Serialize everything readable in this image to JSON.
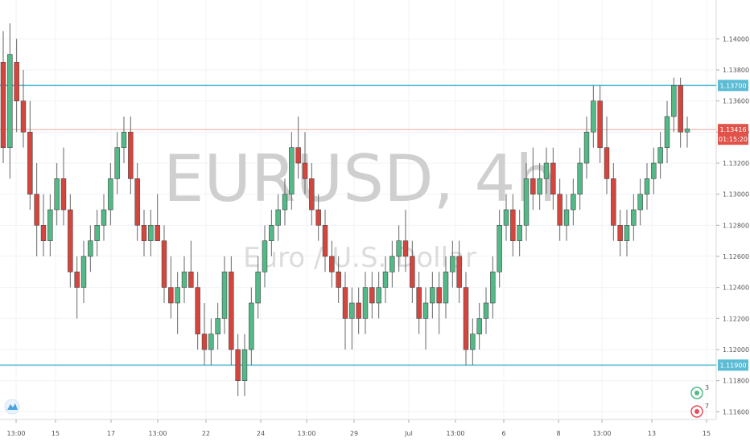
{
  "chart_data": {
    "type": "candlestick",
    "symbol": "EURUSD",
    "interval": "4h",
    "description": "Euro / U.S. Dollar",
    "ylim": [
      1.1155,
      1.1425
    ],
    "y_ticks": [
      "1.11600",
      "1.11800",
      "1.12000",
      "1.12200",
      "1.12400",
      "1.12600",
      "1.12800",
      "1.13000",
      "1.13200",
      "1.13400",
      "1.13600",
      "1.13800",
      "1.14000"
    ],
    "x_ticks": [
      "13:00",
      "15",
      "17",
      "13:00",
      "22",
      "24",
      "13:00",
      "29",
      "Jul",
      "13:00",
      "6",
      "8",
      "13:00",
      "13",
      "15"
    ],
    "horizontal_lines": [
      {
        "label": "1.13700",
        "value": 1.137,
        "color": "#5bbcd4"
      },
      {
        "label": "1.11900",
        "value": 1.119,
        "color": "#5bbcd4"
      }
    ],
    "last_price": {
      "label": "1.13416",
      "value": 1.13416,
      "countdown": "01:15:20",
      "color": "#e0524a"
    },
    "indicators": [
      "3",
      "7"
    ],
    "candles": [
      [
        1.1385,
        1.1405,
        1.132,
        1.133
      ],
      [
        1.133,
        1.141,
        1.131,
        1.139
      ],
      [
        1.1385,
        1.14,
        1.134,
        1.136
      ],
      [
        1.136,
        1.138,
        1.133,
        1.134
      ],
      [
        1.134,
        1.136,
        1.129,
        1.13
      ],
      [
        1.13,
        1.132,
        1.126,
        1.128
      ],
      [
        1.128,
        1.13,
        1.126,
        1.127
      ],
      [
        1.127,
        1.13,
        1.126,
        1.129
      ],
      [
        1.129,
        1.132,
        1.128,
        1.131
      ],
      [
        1.131,
        1.133,
        1.128,
        1.129
      ],
      [
        1.129,
        1.13,
        1.124,
        1.125
      ],
      [
        1.125,
        1.126,
        1.122,
        1.124
      ],
      [
        1.124,
        1.127,
        1.123,
        1.126
      ],
      [
        1.126,
        1.128,
        1.125,
        1.127
      ],
      [
        1.127,
        1.129,
        1.126,
        1.128
      ],
      [
        1.128,
        1.13,
        1.127,
        1.129
      ],
      [
        1.129,
        1.132,
        1.128,
        1.131
      ],
      [
        1.131,
        1.134,
        1.13,
        1.133
      ],
      [
        1.133,
        1.135,
        1.132,
        1.134
      ],
      [
        1.134,
        1.135,
        1.13,
        1.131
      ],
      [
        1.131,
        1.132,
        1.127,
        1.128
      ],
      [
        1.128,
        1.129,
        1.126,
        1.127
      ],
      [
        1.127,
        1.129,
        1.126,
        1.128
      ],
      [
        1.128,
        1.13,
        1.127,
        1.127
      ],
      [
        1.127,
        1.128,
        1.123,
        1.124
      ],
      [
        1.124,
        1.126,
        1.122,
        1.123
      ],
      [
        1.123,
        1.125,
        1.121,
        1.124
      ],
      [
        1.124,
        1.126,
        1.123,
        1.125
      ],
      [
        1.125,
        1.127,
        1.124,
        1.124
      ],
      [
        1.124,
        1.125,
        1.12,
        1.121
      ],
      [
        1.121,
        1.123,
        1.119,
        1.12
      ],
      [
        1.12,
        1.122,
        1.119,
        1.121
      ],
      [
        1.121,
        1.123,
        1.12,
        1.122
      ],
      [
        1.122,
        1.126,
        1.121,
        1.125
      ],
      [
        1.125,
        1.126,
        1.119,
        1.12
      ],
      [
        1.12,
        1.121,
        1.117,
        1.118
      ],
      [
        1.118,
        1.121,
        1.117,
        1.12
      ],
      [
        1.12,
        1.124,
        1.119,
        1.123
      ],
      [
        1.123,
        1.126,
        1.122,
        1.125
      ],
      [
        1.125,
        1.128,
        1.124,
        1.127
      ],
      [
        1.127,
        1.129,
        1.126,
        1.128
      ],
      [
        1.128,
        1.13,
        1.127,
        1.129
      ],
      [
        1.129,
        1.131,
        1.128,
        1.13
      ],
      [
        1.13,
        1.134,
        1.129,
        1.133
      ],
      [
        1.133,
        1.135,
        1.131,
        1.132
      ],
      [
        1.132,
        1.134,
        1.13,
        1.131
      ],
      [
        1.131,
        1.132,
        1.128,
        1.129
      ],
      [
        1.129,
        1.13,
        1.127,
        1.128
      ],
      [
        1.128,
        1.129,
        1.125,
        1.126
      ],
      [
        1.126,
        1.127,
        1.124,
        1.125
      ],
      [
        1.125,
        1.126,
        1.123,
        1.124
      ],
      [
        1.124,
        1.125,
        1.12,
        1.122
      ],
      [
        1.122,
        1.124,
        1.12,
        1.123
      ],
      [
        1.123,
        1.124,
        1.121,
        1.122
      ],
      [
        1.122,
        1.125,
        1.121,
        1.124
      ],
      [
        1.124,
        1.125,
        1.122,
        1.123
      ],
      [
        1.123,
        1.125,
        1.122,
        1.124
      ],
      [
        1.124,
        1.126,
        1.123,
        1.125
      ],
      [
        1.125,
        1.127,
        1.124,
        1.126
      ],
      [
        1.126,
        1.128,
        1.125,
        1.127
      ],
      [
        1.127,
        1.129,
        1.125,
        1.126
      ],
      [
        1.126,
        1.127,
        1.123,
        1.124
      ],
      [
        1.124,
        1.125,
        1.121,
        1.122
      ],
      [
        1.122,
        1.124,
        1.12,
        1.123
      ],
      [
        1.123,
        1.125,
        1.122,
        1.124
      ],
      [
        1.124,
        1.125,
        1.121,
        1.123
      ],
      [
        1.123,
        1.126,
        1.122,
        1.125
      ],
      [
        1.125,
        1.127,
        1.124,
        1.126
      ],
      [
        1.126,
        1.127,
        1.123,
        1.124
      ],
      [
        1.124,
        1.125,
        1.119,
        1.12
      ],
      [
        1.12,
        1.122,
        1.119,
        1.121
      ],
      [
        1.121,
        1.123,
        1.12,
        1.122
      ],
      [
        1.122,
        1.124,
        1.121,
        1.123
      ],
      [
        1.123,
        1.126,
        1.122,
        1.125
      ],
      [
        1.125,
        1.129,
        1.124,
        1.128
      ],
      [
        1.128,
        1.13,
        1.127,
        1.129
      ],
      [
        1.129,
        1.13,
        1.126,
        1.127
      ],
      [
        1.127,
        1.129,
        1.126,
        1.128
      ],
      [
        1.128,
        1.132,
        1.127,
        1.131
      ],
      [
        1.131,
        1.133,
        1.129,
        1.13
      ],
      [
        1.13,
        1.132,
        1.129,
        1.131
      ],
      [
        1.131,
        1.133,
        1.13,
        1.132
      ],
      [
        1.132,
        1.133,
        1.129,
        1.13
      ],
      [
        1.13,
        1.131,
        1.127,
        1.128
      ],
      [
        1.128,
        1.13,
        1.127,
        1.129
      ],
      [
        1.129,
        1.131,
        1.128,
        1.13
      ],
      [
        1.13,
        1.133,
        1.129,
        1.132
      ],
      [
        1.132,
        1.135,
        1.131,
        1.134
      ],
      [
        1.134,
        1.137,
        1.133,
        1.136
      ],
      [
        1.136,
        1.137,
        1.132,
        1.133
      ],
      [
        1.133,
        1.135,
        1.13,
        1.131
      ],
      [
        1.131,
        1.132,
        1.127,
        1.128
      ],
      [
        1.128,
        1.129,
        1.126,
        1.127
      ],
      [
        1.127,
        1.129,
        1.126,
        1.128
      ],
      [
        1.128,
        1.13,
        1.127,
        1.129
      ],
      [
        1.129,
        1.131,
        1.128,
        1.13
      ],
      [
        1.13,
        1.132,
        1.129,
        1.131
      ],
      [
        1.131,
        1.133,
        1.13,
        1.132
      ],
      [
        1.132,
        1.134,
        1.131,
        1.133
      ],
      [
        1.133,
        1.136,
        1.132,
        1.135
      ],
      [
        1.135,
        1.1375,
        1.134,
        1.137
      ],
      [
        1.137,
        1.1375,
        1.133,
        1.134
      ],
      [
        1.134,
        1.135,
        1.133,
        1.1342
      ]
    ]
  }
}
